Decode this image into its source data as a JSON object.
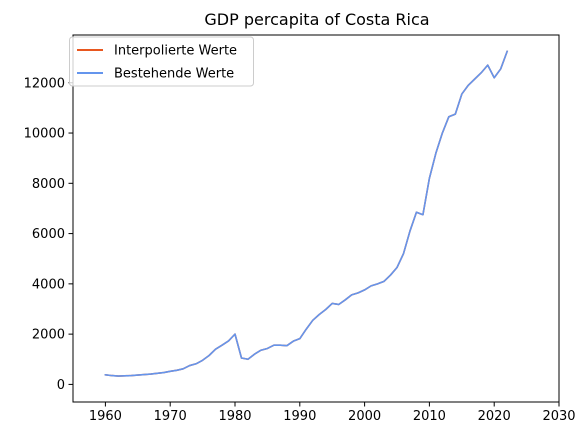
{
  "chart_data": {
    "type": "line",
    "title": "GDP percapita of Costa Rica",
    "xlabel": "",
    "ylabel": "",
    "xlim": [
      1955,
      2030
    ],
    "ylim": [
      -700,
      13900
    ],
    "xticks": [
      1960,
      1970,
      1980,
      1990,
      2000,
      2010,
      2020,
      2030
    ],
    "yticks": [
      0,
      2000,
      4000,
      6000,
      8000,
      10000,
      12000
    ],
    "grid": false,
    "legend_position": "top-left",
    "x": [
      1960,
      1961,
      1962,
      1963,
      1964,
      1965,
      1966,
      1967,
      1968,
      1969,
      1970,
      1971,
      1972,
      1973,
      1974,
      1975,
      1976,
      1977,
      1978,
      1979,
      1980,
      1981,
      1982,
      1983,
      1984,
      1985,
      1986,
      1987,
      1988,
      1989,
      1990,
      1991,
      1992,
      1993,
      1994,
      1995,
      1996,
      1997,
      1998,
      1999,
      2000,
      2001,
      2002,
      2003,
      2004,
      2005,
      2006,
      2007,
      2008,
      2009,
      2010,
      2011,
      2012,
      2013,
      2014,
      2015,
      2016,
      2017,
      2018,
      2019,
      2020,
      2021,
      2022
    ],
    "series": [
      {
        "name": "Interpolierte Werte",
        "color": "#e8571f",
        "values": [
          380,
          350,
          330,
          340,
          350,
          370,
          390,
          410,
          440,
          470,
          520,
          560,
          620,
          750,
          820,
          960,
          1150,
          1400,
          1560,
          1730,
          2000,
          1050,
          1000,
          1200,
          1360,
          1430,
          1560,
          1560,
          1540,
          1720,
          1820,
          2200,
          2550,
          2780,
          2980,
          3220,
          3180,
          3360,
          3560,
          3640,
          3760,
          3920,
          4000,
          4100,
          4350,
          4650,
          5200,
          6100,
          6850,
          6750,
          8200,
          9200,
          10000,
          10650,
          10750,
          11550,
          11900,
          12150,
          12400,
          12700,
          12200,
          12550,
          13250
        ]
      },
      {
        "name": "Bestehende Werte",
        "color": "#6495ed",
        "values": [
          380,
          350,
          330,
          340,
          350,
          370,
          390,
          410,
          440,
          470,
          520,
          560,
          620,
          750,
          820,
          960,
          1150,
          1400,
          1560,
          1730,
          2000,
          1050,
          1000,
          1200,
          1360,
          1430,
          1560,
          1560,
          1540,
          1720,
          1820,
          2200,
          2550,
          2780,
          2980,
          3220,
          3180,
          3360,
          3560,
          3640,
          3760,
          3920,
          4000,
          4100,
          4350,
          4650,
          5200,
          6100,
          6850,
          6750,
          8200,
          9200,
          10000,
          10650,
          10750,
          11550,
          11900,
          12150,
          12400,
          12700,
          12200,
          12550,
          13250
        ]
      }
    ]
  }
}
